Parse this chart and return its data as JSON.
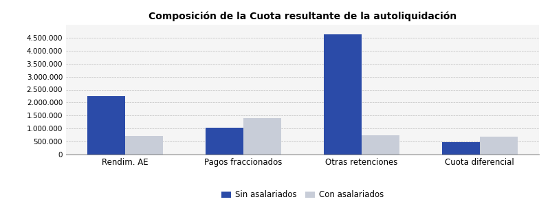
{
  "title": "Composición de la Cuota resultante de la autoliquidación",
  "categories": [
    "Rendim. AE",
    "Pagos fraccionados",
    "Otras retenciones",
    "Cuota diferencial"
  ],
  "sin_asalariados": [
    2250000,
    1020000,
    4620000,
    480000
  ],
  "con_asalariados": [
    720000,
    1390000,
    740000,
    690000
  ],
  "color_sin": "#2B4BA8",
  "color_con": "#C8CDD8",
  "ylim": [
    0,
    5000000
  ],
  "yticks": [
    0,
    500000,
    1000000,
    1500000,
    2000000,
    2500000,
    3000000,
    3500000,
    4000000,
    4500000
  ],
  "legend_labels": [
    "Sin asalariados",
    "Con asalariados"
  ],
  "background_color": "#FFFFFF",
  "plot_bg_color": "#F5F5F5",
  "grid_color": "#AAAAAA",
  "bar_width": 0.32,
  "title_fontsize": 10,
  "tick_fontsize": 7.5,
  "xlabel_fontsize": 8.5
}
